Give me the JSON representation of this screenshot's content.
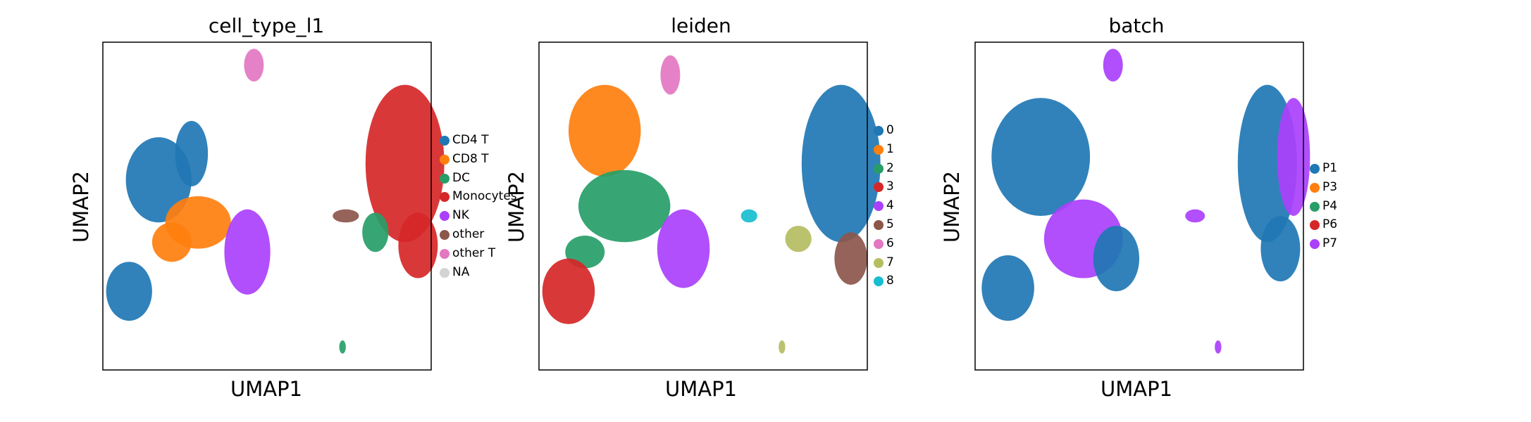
{
  "chart_data": [
    {
      "type": "scatter",
      "title": "cell_type_l1",
      "xlabel": "UMAP1",
      "ylabel": "UMAP2",
      "xlim": [
        0,
        10
      ],
      "ylim": [
        0,
        10
      ],
      "grid": false,
      "legend_position": "right",
      "legend": [
        {
          "label": "CD4 T",
          "color": "#1f77b4"
        },
        {
          "label": "CD8 T",
          "color": "#ff7f0e"
        },
        {
          "label": "DC",
          "color": "#279e68"
        },
        {
          "label": "Monocytes",
          "color": "#d62728"
        },
        {
          "label": "NK",
          "color": "#aa40fc"
        },
        {
          "label": "other",
          "color": "#8c564b"
        },
        {
          "label": "other T",
          "color": "#e377c2"
        },
        {
          "label": "NA",
          "color": "#d3d3d3"
        }
      ],
      "clusters": [
        {
          "x": 1.7,
          "y": 5.8,
          "rx": 1.0,
          "ry": 1.3,
          "color": "#1f77b4"
        },
        {
          "x": 2.7,
          "y": 6.6,
          "rx": 0.5,
          "ry": 1.0,
          "color": "#1f77b4"
        },
        {
          "x": 0.8,
          "y": 2.4,
          "rx": 0.7,
          "ry": 0.9,
          "color": "#1f77b4"
        },
        {
          "x": 2.9,
          "y": 4.5,
          "rx": 1.0,
          "ry": 0.8,
          "color": "#ff7f0e"
        },
        {
          "x": 2.1,
          "y": 3.9,
          "rx": 0.6,
          "ry": 0.6,
          "color": "#ff7f0e"
        },
        {
          "x": 4.4,
          "y": 3.6,
          "rx": 0.7,
          "ry": 1.3,
          "color": "#aa40fc"
        },
        {
          "x": 9.2,
          "y": 6.3,
          "rx": 1.2,
          "ry": 2.4,
          "color": "#d62728"
        },
        {
          "x": 9.6,
          "y": 3.8,
          "rx": 0.6,
          "ry": 1.0,
          "color": "#d62728"
        },
        {
          "x": 8.3,
          "y": 4.2,
          "rx": 0.4,
          "ry": 0.6,
          "color": "#279e68"
        },
        {
          "x": 7.4,
          "y": 4.7,
          "rx": 0.4,
          "ry": 0.2,
          "color": "#8c564b"
        },
        {
          "x": 4.6,
          "y": 9.3,
          "rx": 0.3,
          "ry": 0.5,
          "color": "#e377c2"
        },
        {
          "x": 7.3,
          "y": 0.7,
          "rx": 0.1,
          "ry": 0.2,
          "color": "#279e68"
        }
      ]
    },
    {
      "type": "scatter",
      "title": "leiden",
      "xlabel": "UMAP1",
      "ylabel": "UMAP2",
      "xlim": [
        0,
        10
      ],
      "ylim": [
        0,
        10
      ],
      "grid": false,
      "legend_position": "right",
      "legend": [
        {
          "label": "0",
          "color": "#1f77b4"
        },
        {
          "label": "1",
          "color": "#ff7f0e"
        },
        {
          "label": "2",
          "color": "#279e68"
        },
        {
          "label": "3",
          "color": "#d62728"
        },
        {
          "label": "4",
          "color": "#aa40fc"
        },
        {
          "label": "5",
          "color": "#8c564b"
        },
        {
          "label": "6",
          "color": "#e377c2"
        },
        {
          "label": "7",
          "color": "#b5bd61"
        },
        {
          "label": "8",
          "color": "#17becf"
        }
      ],
      "clusters": [
        {
          "x": 9.2,
          "y": 6.3,
          "rx": 1.2,
          "ry": 2.4,
          "color": "#1f77b4"
        },
        {
          "x": 2.0,
          "y": 7.3,
          "rx": 1.1,
          "ry": 1.4,
          "color": "#ff7f0e"
        },
        {
          "x": 2.6,
          "y": 5.0,
          "rx": 1.4,
          "ry": 1.1,
          "color": "#279e68"
        },
        {
          "x": 1.4,
          "y": 3.6,
          "rx": 0.6,
          "ry": 0.5,
          "color": "#279e68"
        },
        {
          "x": 0.9,
          "y": 2.4,
          "rx": 0.8,
          "ry": 1.0,
          "color": "#d62728"
        },
        {
          "x": 4.4,
          "y": 3.7,
          "rx": 0.8,
          "ry": 1.2,
          "color": "#aa40fc"
        },
        {
          "x": 9.5,
          "y": 3.4,
          "rx": 0.5,
          "ry": 0.8,
          "color": "#8c564b"
        },
        {
          "x": 4.0,
          "y": 9.0,
          "rx": 0.3,
          "ry": 0.6,
          "color": "#e377c2"
        },
        {
          "x": 7.9,
          "y": 4.0,
          "rx": 0.4,
          "ry": 0.4,
          "color": "#b5bd61"
        },
        {
          "x": 6.4,
          "y": 4.7,
          "rx": 0.25,
          "ry": 0.2,
          "color": "#17becf"
        },
        {
          "x": 7.4,
          "y": 0.7,
          "rx": 0.1,
          "ry": 0.2,
          "color": "#b5bd61"
        }
      ]
    },
    {
      "type": "scatter",
      "title": "batch",
      "xlabel": "UMAP1",
      "ylabel": "UMAP2",
      "xlim": [
        0,
        10
      ],
      "ylim": [
        0,
        10
      ],
      "grid": false,
      "legend_position": "right",
      "legend": [
        {
          "label": "P1",
          "color": "#1f77b4"
        },
        {
          "label": "P3",
          "color": "#ff7f0e"
        },
        {
          "label": "P4",
          "color": "#279e68"
        },
        {
          "label": "P6",
          "color": "#d62728"
        },
        {
          "label": "P7",
          "color": "#aa40fc"
        }
      ],
      "clusters": [
        {
          "x": 2.0,
          "y": 6.5,
          "rx": 1.5,
          "ry": 1.8,
          "color": "#1f77b4"
        },
        {
          "x": 1.0,
          "y": 2.5,
          "rx": 0.8,
          "ry": 1.0,
          "color": "#1f77b4"
        },
        {
          "x": 3.3,
          "y": 4.0,
          "rx": 1.2,
          "ry": 1.2,
          "color": "#aa40fc"
        },
        {
          "x": 4.3,
          "y": 3.4,
          "rx": 0.7,
          "ry": 1.0,
          "color": "#1f77b4"
        },
        {
          "x": 8.9,
          "y": 6.3,
          "rx": 0.9,
          "ry": 2.4,
          "color": "#1f77b4"
        },
        {
          "x": 9.7,
          "y": 6.5,
          "rx": 0.5,
          "ry": 1.8,
          "color": "#aa40fc"
        },
        {
          "x": 9.3,
          "y": 3.7,
          "rx": 0.6,
          "ry": 1.0,
          "color": "#1f77b4"
        },
        {
          "x": 4.2,
          "y": 9.3,
          "rx": 0.3,
          "ry": 0.5,
          "color": "#aa40fc"
        },
        {
          "x": 6.7,
          "y": 4.7,
          "rx": 0.3,
          "ry": 0.2,
          "color": "#aa40fc"
        },
        {
          "x": 7.4,
          "y": 0.7,
          "rx": 0.1,
          "ry": 0.2,
          "color": "#aa40fc"
        }
      ]
    }
  ]
}
